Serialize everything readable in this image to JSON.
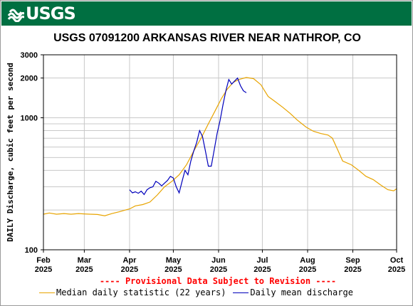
{
  "header": {
    "logo_text": "USGS",
    "brand_color": "#006f41"
  },
  "title": "USGS 07091200 ARKANSAS RIVER NEAR NATHROP, CO",
  "provisional_note": "---- Provisional Data Subject to Revision ----",
  "legend": [
    {
      "label": "Median daily statistic (22 years)",
      "color": "#e8a400"
    },
    {
      "label": "Daily mean discharge",
      "color": "#0000bb"
    }
  ],
  "chart_data": {
    "type": "line",
    "ylabel": "DAILY Discharge, cubic feet per second",
    "yscale": "log",
    "ylim": [
      100,
      3000
    ],
    "y_ticks": [
      {
        "value": 100,
        "label": "100"
      },
      {
        "value": 1000,
        "label": "1000"
      },
      {
        "value": 2000,
        "label": "2000"
      },
      {
        "value": 3000,
        "label": "3000"
      }
    ],
    "xlim": [
      "2025-02-01",
      "2025-10-01"
    ],
    "x_ticks": [
      {
        "date": "2025-02-01",
        "month": "Feb",
        "year": "2025"
      },
      {
        "date": "2025-03-01",
        "month": "Mar",
        "year": "2025"
      },
      {
        "date": "2025-04-01",
        "month": "Apr",
        "year": "2025"
      },
      {
        "date": "2025-05-01",
        "month": "May",
        "year": "2025"
      },
      {
        "date": "2025-06-01",
        "month": "Jun",
        "year": "2025"
      },
      {
        "date": "2025-07-01",
        "month": "Jul",
        "year": "2025"
      },
      {
        "date": "2025-08-01",
        "month": "Aug",
        "year": "2025"
      },
      {
        "date": "2025-09-01",
        "month": "Sep",
        "year": "2025"
      },
      {
        "date": "2025-10-01",
        "month": "Oct",
        "year": "2025"
      }
    ],
    "grid": true,
    "series": [
      {
        "name": "Median daily statistic (22 years)",
        "color": "#e8a400",
        "points": [
          [
            "2025-02-01",
            186
          ],
          [
            "2025-02-05",
            190
          ],
          [
            "2025-02-10",
            186
          ],
          [
            "2025-02-15",
            188
          ],
          [
            "2025-02-20",
            186
          ],
          [
            "2025-02-25",
            188
          ],
          [
            "2025-03-01",
            187
          ],
          [
            "2025-03-05",
            186
          ],
          [
            "2025-03-10",
            185
          ],
          [
            "2025-03-15",
            181
          ],
          [
            "2025-03-20",
            188
          ],
          [
            "2025-03-25",
            194
          ],
          [
            "2025-03-29",
            200
          ],
          [
            "2025-04-01",
            204
          ],
          [
            "2025-04-05",
            215
          ],
          [
            "2025-04-10",
            220
          ],
          [
            "2025-04-15",
            230
          ],
          [
            "2025-04-20",
            260
          ],
          [
            "2025-04-25",
            300
          ],
          [
            "2025-04-30",
            330
          ],
          [
            "2025-05-05",
            370
          ],
          [
            "2025-05-10",
            440
          ],
          [
            "2025-05-15",
            560
          ],
          [
            "2025-05-20",
            700
          ],
          [
            "2025-05-25",
            900
          ],
          [
            "2025-05-30",
            1150
          ],
          [
            "2025-06-03",
            1400
          ],
          [
            "2025-06-07",
            1650
          ],
          [
            "2025-06-11",
            1850
          ],
          [
            "2025-06-15",
            1950
          ],
          [
            "2025-06-20",
            2020
          ],
          [
            "2025-06-25",
            1980
          ],
          [
            "2025-06-30",
            1780
          ],
          [
            "2025-07-05",
            1450
          ],
          [
            "2025-07-10",
            1320
          ],
          [
            "2025-07-15",
            1200
          ],
          [
            "2025-07-20",
            1080
          ],
          [
            "2025-07-25",
            960
          ],
          [
            "2025-07-31",
            850
          ],
          [
            "2025-08-05",
            790
          ],
          [
            "2025-08-10",
            760
          ],
          [
            "2025-08-15",
            740
          ],
          [
            "2025-08-18",
            700
          ],
          [
            "2025-08-22",
            560
          ],
          [
            "2025-08-25",
            470
          ],
          [
            "2025-08-31",
            440
          ],
          [
            "2025-09-05",
            400
          ],
          [
            "2025-09-10",
            360
          ],
          [
            "2025-09-15",
            340
          ],
          [
            "2025-09-20",
            310
          ],
          [
            "2025-09-25",
            285
          ],
          [
            "2025-09-29",
            280
          ],
          [
            "2025-10-01",
            290
          ]
        ]
      },
      {
        "name": "Daily mean discharge",
        "color": "#0000bb",
        "points": [
          [
            "2025-04-01",
            285
          ],
          [
            "2025-04-03",
            270
          ],
          [
            "2025-04-05",
            275
          ],
          [
            "2025-04-07",
            268
          ],
          [
            "2025-04-09",
            278
          ],
          [
            "2025-04-11",
            262
          ],
          [
            "2025-04-13",
            285
          ],
          [
            "2025-04-15",
            295
          ],
          [
            "2025-04-17",
            300
          ],
          [
            "2025-04-19",
            330
          ],
          [
            "2025-04-21",
            320
          ],
          [
            "2025-04-23",
            305
          ],
          [
            "2025-04-25",
            320
          ],
          [
            "2025-04-27",
            335
          ],
          [
            "2025-04-29",
            360
          ],
          [
            "2025-05-01",
            350
          ],
          [
            "2025-05-03",
            300
          ],
          [
            "2025-05-05",
            270
          ],
          [
            "2025-05-07",
            330
          ],
          [
            "2025-05-09",
            400
          ],
          [
            "2025-05-11",
            370
          ],
          [
            "2025-05-13",
            470
          ],
          [
            "2025-05-15",
            560
          ],
          [
            "2025-05-17",
            650
          ],
          [
            "2025-05-19",
            800
          ],
          [
            "2025-05-21",
            720
          ],
          [
            "2025-05-23",
            560
          ],
          [
            "2025-05-25",
            430
          ],
          [
            "2025-05-27",
            430
          ],
          [
            "2025-05-29",
            570
          ],
          [
            "2025-05-31",
            760
          ],
          [
            "2025-06-02",
            950
          ],
          [
            "2025-06-04",
            1250
          ],
          [
            "2025-06-06",
            1600
          ],
          [
            "2025-06-08",
            1950
          ],
          [
            "2025-06-10",
            1800
          ],
          [
            "2025-06-12",
            1900
          ],
          [
            "2025-06-14",
            2000
          ],
          [
            "2025-06-16",
            1750
          ],
          [
            "2025-06-18",
            1600
          ],
          [
            "2025-06-20",
            1550
          ]
        ]
      }
    ]
  }
}
